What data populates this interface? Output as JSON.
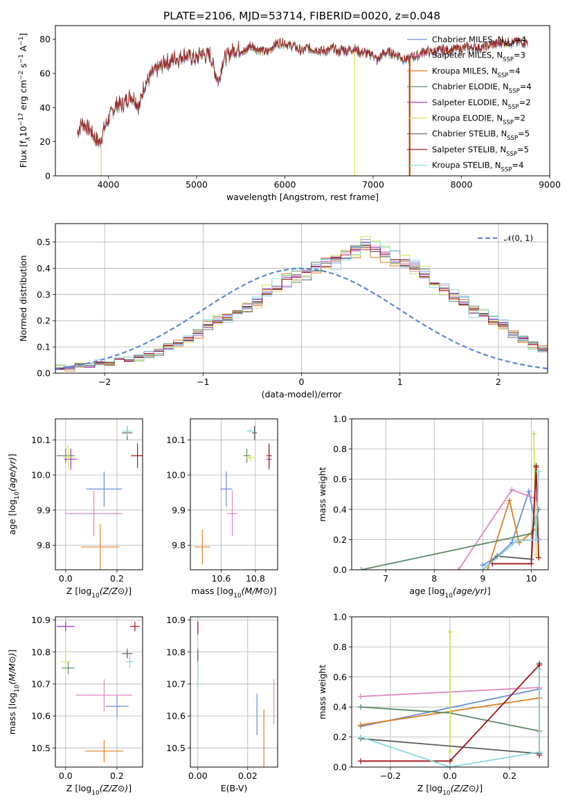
{
  "title": "PLATE=2106, MJD=53714, FIBERID=0020, z=0.048",
  "series": [
    {
      "name": "Chabrier MILES",
      "nssp": "4",
      "color": "#6a8fd8"
    },
    {
      "name": "Salpeter MILES",
      "nssp": "3",
      "color": "#e187c0"
    },
    {
      "name": "Kroupa MILES",
      "nssp": "4",
      "color": "#dd7f24"
    },
    {
      "name": "Chabrier ELODIE",
      "nssp": "4",
      "color": "#5e8a6a"
    },
    {
      "name": "Salpeter ELODIE",
      "nssp": "2",
      "color": "#9a32c4"
    },
    {
      "name": "Kroupa ELODIE",
      "nssp": "2",
      "color": "#d2e45a"
    },
    {
      "name": "Chabrier STELIB",
      "nssp": "5",
      "color": "#5a5a5a"
    },
    {
      "name": "Salpeter STELIB",
      "nssp": "5",
      "color": "#a3151b"
    },
    {
      "name": "Kroupa STELIB",
      "nssp": "4",
      "color": "#86d8dd"
    }
  ],
  "chart_data": [
    {
      "id": "spectrum",
      "type": "line",
      "xlabel": "wavelength [Angstrom, rest frame]",
      "ylabel_parts": [
        "Flux [f",
        "λ",
        "10",
        "−17",
        " erg cm",
        "−2",
        " s",
        "−1",
        " A",
        "−1",
        "]"
      ],
      "xlim": [
        3400,
        9000
      ],
      "ylim": [
        0,
        88
      ],
      "xticks": [
        4000,
        5000,
        6000,
        7000,
        8000,
        9000
      ],
      "yticks": [
        0,
        20,
        40,
        60,
        80
      ],
      "x": [
        3650,
        3700,
        3750,
        3800,
        3850,
        3900,
        3950,
        4000,
        4050,
        4100,
        4150,
        4200,
        4250,
        4300,
        4350,
        4400,
        4450,
        4500,
        4550,
        4600,
        4650,
        4700,
        4750,
        4800,
        4850,
        4900,
        4950,
        5000,
        5050,
        5100,
        5150,
        5200,
        5250,
        5300,
        5350,
        5400,
        5450,
        5500,
        5550,
        5600,
        5650,
        5700,
        5750,
        5800,
        5850,
        5900,
        5950,
        6000,
        6050,
        6100,
        6150,
        6200,
        6250,
        6300,
        6350,
        6400,
        6450,
        6500,
        6550,
        6600,
        6650,
        6700,
        6750,
        6800,
        6850,
        6900,
        6950,
        7000,
        7050,
        7100,
        7150,
        7200,
        7250,
        7300,
        7350,
        7400,
        7450,
        7500,
        7550,
        7600,
        7650,
        7700,
        7750,
        7800,
        7850,
        7900,
        7950,
        8000,
        8050,
        8100,
        8150,
        8200,
        8250,
        8300,
        8350,
        8400,
        8450,
        8500,
        8550,
        8600,
        8650,
        8700,
        8750
      ],
      "flux": [
        25,
        31,
        29,
        26,
        22,
        19,
        27,
        33,
        38,
        42,
        41,
        44,
        47,
        45,
        40,
        52,
        56,
        60,
        62,
        64,
        67,
        66,
        69,
        68,
        71,
        70,
        69,
        68,
        72,
        70,
        71,
        62,
        55,
        68,
        70,
        73,
        74,
        74,
        72,
        76,
        75,
        74,
        73,
        72,
        75,
        77,
        78,
        78,
        76,
        76,
        74,
        73,
        75,
        74,
        74,
        73,
        73,
        73,
        75,
        72,
        74,
        73,
        74,
        74,
        72,
        72,
        71,
        71,
        67,
        71,
        72,
        72,
        71,
        70,
        68,
        68,
        70,
        70,
        72,
        73,
        72,
        73,
        73,
        74,
        73,
        74,
        74,
        74,
        75,
        75,
        75,
        75,
        75,
        76,
        77,
        77,
        78,
        78,
        78,
        78,
        78,
        78,
        78
      ],
      "drops": [
        {
          "series": "Kroupa ELODIE",
          "at": 3920,
          "from": 18,
          "to": 0
        },
        {
          "series": "Kroupa ELODIE",
          "at": 6790,
          "from": 73,
          "to": 0
        },
        {
          "series": "Salpeter STELIB",
          "at": 7410,
          "from": 69,
          "to": 0
        },
        {
          "series": "Kroupa MILES",
          "at": 7420,
          "from": 69,
          "to": 0
        }
      ]
    },
    {
      "id": "residuals",
      "type": "histogram",
      "xlabel": "(data-model)/error",
      "ylabel": "Normed distribution",
      "xlim": [
        -2.5,
        2.5
      ],
      "ylim": [
        0,
        0.57
      ],
      "xticks": [
        -2,
        -1,
        0,
        1,
        2
      ],
      "yticks": [
        0.0,
        0.1,
        0.2,
        0.3,
        0.4,
        0.5
      ],
      "legend": "𝒩(0, 1)",
      "bin_width": 0.1,
      "bin_start": -2.5,
      "reference_hist": [
        0.02,
        0.02,
        0.03,
        0.03,
        0.04,
        0.04,
        0.05,
        0.05,
        0.06,
        0.07,
        0.08,
        0.1,
        0.11,
        0.13,
        0.15,
        0.18,
        0.2,
        0.21,
        0.23,
        0.25,
        0.27,
        0.31,
        0.33,
        0.35,
        0.37,
        0.38,
        0.4,
        0.41,
        0.43,
        0.44,
        0.47,
        0.49,
        0.47,
        0.45,
        0.44,
        0.42,
        0.4,
        0.38,
        0.35,
        0.32,
        0.29,
        0.27,
        0.24,
        0.23,
        0.2,
        0.18,
        0.15,
        0.13,
        0.11,
        0.09,
        0.08,
        0.06,
        0.05,
        0.05,
        0.04,
        0.04,
        0.03,
        0.03,
        0.02,
        0.02
      ],
      "jitter": [
        0.02,
        -0.015,
        0.025,
        -0.02,
        0.015,
        -0.025,
        0.01,
        -0.01,
        0.03
      ]
    },
    {
      "id": "age-vs-z",
      "type": "errorbar",
      "xlabel": "Z [log10(Z/Z⊙)]",
      "ylabel": "age  [log10(age/yr)]",
      "xlim": [
        -0.04,
        0.3
      ],
      "ylim": [
        9.73,
        10.16
      ],
      "xticks": [
        0.0,
        0.2
      ],
      "yticks": [
        9.8,
        9.9,
        10.0,
        10.1
      ],
      "points": [
        {
          "series": "Chabrier MILES",
          "x": 0.15,
          "y": 9.96,
          "xerr": 0.07,
          "yerr": 0.05
        },
        {
          "series": "Salpeter MILES",
          "x": 0.11,
          "y": 9.89,
          "xerr": 0.11,
          "yerr": 0.065
        },
        {
          "series": "Kroupa MILES",
          "x": 0.135,
          "y": 9.795,
          "xerr": 0.075,
          "yerr": 0.065
        },
        {
          "series": "Chabrier ELODIE",
          "x": 0.0,
          "y": 10.055,
          "xerr": 0.035,
          "yerr": 0.02
        },
        {
          "series": "Salpeter ELODIE",
          "x": 0.02,
          "y": 10.045,
          "xerr": 0.025,
          "yerr": 0.03
        },
        {
          "series": "Kroupa ELODIE",
          "x": 0.01,
          "y": 10.05,
          "xerr": 0.02,
          "yerr": 0.035
        },
        {
          "series": "Chabrier STELIB",
          "x": 0.24,
          "y": 10.12,
          "xerr": 0.02,
          "yerr": 0.02
        },
        {
          "series": "Salpeter STELIB",
          "x": 0.28,
          "y": 10.055,
          "xerr": 0.025,
          "yerr": 0.035
        },
        {
          "series": "Kroupa STELIB",
          "x": 0.24,
          "y": 10.125,
          "xerr": 0.02,
          "yerr": 0.015
        }
      ]
    },
    {
      "id": "age-vs-mass",
      "type": "errorbar",
      "xlabel": "mass [log10(M/M⊙)]",
      "ylabel": "",
      "xlim": [
        10.42,
        10.93
      ],
      "ylim": [
        9.73,
        10.16
      ],
      "xticks": [
        10.6,
        10.8
      ],
      "yticks": [
        9.8,
        9.9,
        10.0,
        10.1
      ],
      "points": [
        {
          "series": "Chabrier MILES",
          "x": 10.63,
          "y": 9.96,
          "xerr": 0.035,
          "yerr": 0.05
        },
        {
          "series": "Salpeter MILES",
          "x": 10.665,
          "y": 9.89,
          "xerr": 0.03,
          "yerr": 0.065
        },
        {
          "series": "Kroupa MILES",
          "x": 10.49,
          "y": 9.795,
          "xerr": 0.045,
          "yerr": 0.05
        },
        {
          "series": "Chabrier ELODIE",
          "x": 10.75,
          "y": 10.055,
          "xerr": 0.02,
          "yerr": 0.02
        },
        {
          "series": "Salpeter ELODIE",
          "x": 10.88,
          "y": 10.045,
          "xerr": 0.015,
          "yerr": 0.03
        },
        {
          "series": "Kroupa ELODIE",
          "x": 10.77,
          "y": 10.05,
          "xerr": 0.025,
          "yerr": 0.01
        },
        {
          "series": "Chabrier STELIB",
          "x": 10.795,
          "y": 10.12,
          "xerr": 0.015,
          "yerr": 0.02
        },
        {
          "series": "Salpeter STELIB",
          "x": 10.88,
          "y": 10.055,
          "xerr": 0.015,
          "yerr": 0.035
        },
        {
          "series": "Kroupa STELIB",
          "x": 10.77,
          "y": 10.125,
          "xerr": 0.02,
          "yerr": 0.005
        }
      ]
    },
    {
      "id": "mass-weight-vs-age",
      "type": "line",
      "xlabel": "age  [log10(age/yr)]",
      "ylabel": "mass weight",
      "xlim": [
        6.3,
        10.35
      ],
      "ylim": [
        0,
        1
      ],
      "xticks": [
        7,
        8,
        9,
        10
      ],
      "yticks": [
        0.0,
        0.2,
        0.4,
        0.6,
        0.8,
        1.0
      ],
      "lines": [
        {
          "series": "Chabrier MILES",
          "x": [
            9.0,
            9.3,
            9.6,
            9.95,
            10.15
          ],
          "y": [
            0.03,
            0.09,
            0.18,
            0.52,
            0.2
          ]
        },
        {
          "series": "Salpeter MILES",
          "x": [
            8.5,
            9.6,
            10.1
          ],
          "y": [
            0.0,
            0.53,
            0.47
          ]
        },
        {
          "series": "Kroupa MILES",
          "x": [
            9.1,
            9.55,
            9.75,
            10.1
          ],
          "y": [
            0.0,
            0.46,
            0.18,
            0.27
          ]
        },
        {
          "series": "Chabrier ELODIE",
          "x": [
            6.5,
            10.0,
            10.15
          ],
          "y": [
            0.0,
            0.24,
            0.4
          ]
        },
        {
          "series": "Salpeter ELODIE",
          "x": [
            10.05
          ],
          "y": [
            0.9
          ]
        },
        {
          "series": "Kroupa ELODIE",
          "x": [
            10.05,
            10.1
          ],
          "y": [
            0.9,
            0.1
          ]
        },
        {
          "series": "Chabrier STELIB",
          "x": [
            9.0,
            9.3,
            10.0,
            10.1
          ],
          "y": [
            0.0,
            0.09,
            0.07,
            0.69
          ]
        },
        {
          "series": "Salpeter STELIB",
          "x": [
            9.2,
            10.0,
            10.1,
            10.15
          ],
          "y": [
            0.04,
            0.04,
            0.68,
            0.08
          ]
        },
        {
          "series": "Kroupa STELIB",
          "x": [
            9.0,
            9.7,
            10.1,
            10.15
          ],
          "y": [
            0.0,
            0.19,
            0.2,
            0.65
          ]
        }
      ]
    },
    {
      "id": "mass-vs-z",
      "type": "errorbar",
      "xlabel": "Z [log10(Z/Z⊙)]",
      "ylabel": "mass [log10(M/M⊙)]",
      "xlim": [
        -0.04,
        0.3
      ],
      "ylim": [
        10.44,
        10.91
      ],
      "xticks": [
        0.0,
        0.2
      ],
      "yticks": [
        10.5,
        10.6,
        10.7,
        10.8,
        10.9
      ],
      "points": [
        {
          "series": "Chabrier MILES",
          "x": 0.2,
          "y": 10.63,
          "xerr": 0.045,
          "yerr": 0.035
        },
        {
          "series": "Salpeter MILES",
          "x": 0.15,
          "y": 10.665,
          "xerr": 0.11,
          "yerr": 0.05
        },
        {
          "series": "Kroupa MILES",
          "x": 0.15,
          "y": 10.49,
          "xerr": 0.075,
          "yerr": 0.035
        },
        {
          "series": "Chabrier ELODIE",
          "x": 0.01,
          "y": 10.75,
          "xerr": 0.025,
          "yerr": 0.02
        },
        {
          "series": "Salpeter ELODIE",
          "x": 0.0,
          "y": 10.88,
          "xerr": 0.035,
          "yerr": 0.015
        },
        {
          "series": "Kroupa ELODIE",
          "x": 0.0,
          "y": 10.77,
          "xerr": 0.02,
          "yerr": 0.035
        },
        {
          "series": "Chabrier STELIB",
          "x": 0.24,
          "y": 10.795,
          "xerr": 0.02,
          "yerr": 0.015
        },
        {
          "series": "Salpeter STELIB",
          "x": 0.27,
          "y": 10.88,
          "xerr": 0.02,
          "yerr": 0.015
        },
        {
          "series": "Kroupa STELIB",
          "x": 0.25,
          "y": 10.77,
          "xerr": 0.015,
          "yerr": 0.02
        }
      ]
    },
    {
      "id": "mass-vs-ebv",
      "type": "errorbar",
      "xlabel": "E(B-V)",
      "ylabel": "",
      "xlim": [
        -0.003,
        0.032
      ],
      "ylim": [
        10.44,
        10.91
      ],
      "xticks": [
        0.0,
        0.02
      ],
      "yticks": [
        10.5,
        10.6,
        10.7,
        10.8,
        10.9
      ],
      "points": [
        {
          "series": "Chabrier MILES",
          "x": 0.0237,
          "y": 10.605,
          "xerr": 0,
          "yerr": 0.065
        },
        {
          "series": "Salpeter MILES",
          "x": 0.0305,
          "y": 10.645,
          "xerr": 0,
          "yerr": 0.07
        },
        {
          "series": "Kroupa MILES",
          "x": 0.0265,
          "y": 10.52,
          "xerr": 0,
          "yerr": 0.1
        },
        {
          "series": "Chabrier ELODIE",
          "x": 0.0,
          "y": 10.79,
          "xerr": 0,
          "yerr": 0.02
        },
        {
          "series": "Salpeter ELODIE",
          "x": 0.0,
          "y": 10.88,
          "xerr": 0,
          "yerr": 0.015
        },
        {
          "series": "Kroupa ELODIE",
          "x": 0.0,
          "y": 10.735,
          "xerr": 0,
          "yerr": 0.035
        },
        {
          "series": "Chabrier STELIB",
          "x": 0.0,
          "y": 10.79,
          "xerr": 0,
          "yerr": 0.015
        },
        {
          "series": "Salpeter STELIB",
          "x": 0.0,
          "y": 10.875,
          "xerr": 0,
          "yerr": 0.02
        },
        {
          "series": "Kroupa STELIB",
          "x": 0.0,
          "y": 10.73,
          "xerr": 0,
          "yerr": 0.04
        }
      ]
    },
    {
      "id": "mass-weight-vs-z",
      "type": "line",
      "xlabel": "Z [log10(Z/Z⊙)]",
      "ylabel": "mass weight",
      "xlim": [
        -0.33,
        0.33
      ],
      "ylim": [
        0,
        1
      ],
      "xticks": [
        -0.2,
        0.0,
        0.2
      ],
      "yticks": [
        0.0,
        0.2,
        0.4,
        0.6,
        0.8,
        1.0
      ],
      "lines": [
        {
          "series": "Chabrier MILES",
          "x": [
            -0.3,
            0.3
          ],
          "y": [
            0.27,
            0.52
          ]
        },
        {
          "series": "Salpeter MILES",
          "x": [
            -0.3,
            0.3
          ],
          "y": [
            0.47,
            0.53
          ]
        },
        {
          "series": "Kroupa MILES",
          "x": [
            -0.3,
            0.3
          ],
          "y": [
            0.28,
            0.46
          ]
        },
        {
          "series": "Chabrier ELODIE",
          "x": [
            -0.3,
            0.0,
            0.3
          ],
          "y": [
            0.4,
            0.36,
            0.24
          ]
        },
        {
          "series": "Salpeter ELODIE",
          "x": [
            0.0
          ],
          "y": [
            0.9
          ]
        },
        {
          "series": "Kroupa ELODIE",
          "x": [
            0.0,
            0.0
          ],
          "y": [
            0.9,
            0.1
          ]
        },
        {
          "series": "Chabrier STELIB",
          "x": [
            -0.3,
            0.3,
            0.3
          ],
          "y": [
            0.19,
            0.09,
            0.69
          ]
        },
        {
          "series": "Salpeter STELIB",
          "x": [
            -0.3,
            0.0,
            0.3,
            0.3
          ],
          "y": [
            0.04,
            0.04,
            0.68,
            0.08
          ]
        },
        {
          "series": "Kroupa STELIB",
          "x": [
            -0.3,
            0.0,
            0.3,
            0.3
          ],
          "y": [
            0.2,
            0.0,
            0.1,
            0.65
          ]
        }
      ]
    }
  ]
}
